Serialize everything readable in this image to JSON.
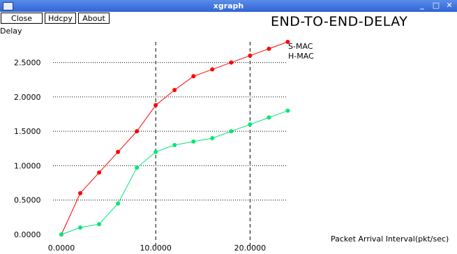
{
  "window": {
    "title": "xgraph",
    "controls": [
      "_",
      "□",
      "✕"
    ]
  },
  "toolbar": {
    "close_label": "Close",
    "hardcopy_label": "Hdcpy",
    "about_label": "About"
  },
  "chart_data": {
    "type": "line",
    "title": "END-TO-END-DELAY",
    "ylabel": "Delay",
    "xlabel": "Packet Arrival Interval(pkt/sec)",
    "xlim": [
      0,
      25
    ],
    "ylim": [
      0,
      2.8
    ],
    "x_ticks": [
      {
        "value": 0,
        "label": "0.0000"
      },
      {
        "value": 10,
        "label": "10.0000"
      },
      {
        "value": 20,
        "label": "20.0000"
      }
    ],
    "y_ticks": [
      {
        "value": 0,
        "label": "0.0000"
      },
      {
        "value": 0.5,
        "label": "0.5000"
      },
      {
        "value": 1.0,
        "label": "1.0000"
      },
      {
        "value": 1.5,
        "label": "1.5000"
      },
      {
        "value": 2.0,
        "label": "2.0000"
      },
      {
        "value": 2.5,
        "label": "2.5000"
      }
    ],
    "grid": "dashed at tick positions",
    "legend_placement": "top-right",
    "series": [
      {
        "name": "S-MAC",
        "color": "#ff0000",
        "x": [
          0,
          2,
          4,
          6,
          8,
          10,
          12,
          14,
          16,
          18,
          20,
          22,
          24
        ],
        "y": [
          0.0,
          0.6,
          0.9,
          1.2,
          1.5,
          1.88,
          2.1,
          2.3,
          2.4,
          2.5,
          2.6,
          2.7,
          2.8
        ]
      },
      {
        "name": "H-MAC",
        "color": "#00e676",
        "x": [
          0,
          2,
          4,
          6,
          8,
          10,
          12,
          14,
          16,
          18,
          20,
          22,
          24
        ],
        "y": [
          0.0,
          0.1,
          0.15,
          0.45,
          0.97,
          1.2,
          1.3,
          1.35,
          1.4,
          1.5,
          1.6,
          1.7,
          1.8
        ]
      }
    ]
  }
}
